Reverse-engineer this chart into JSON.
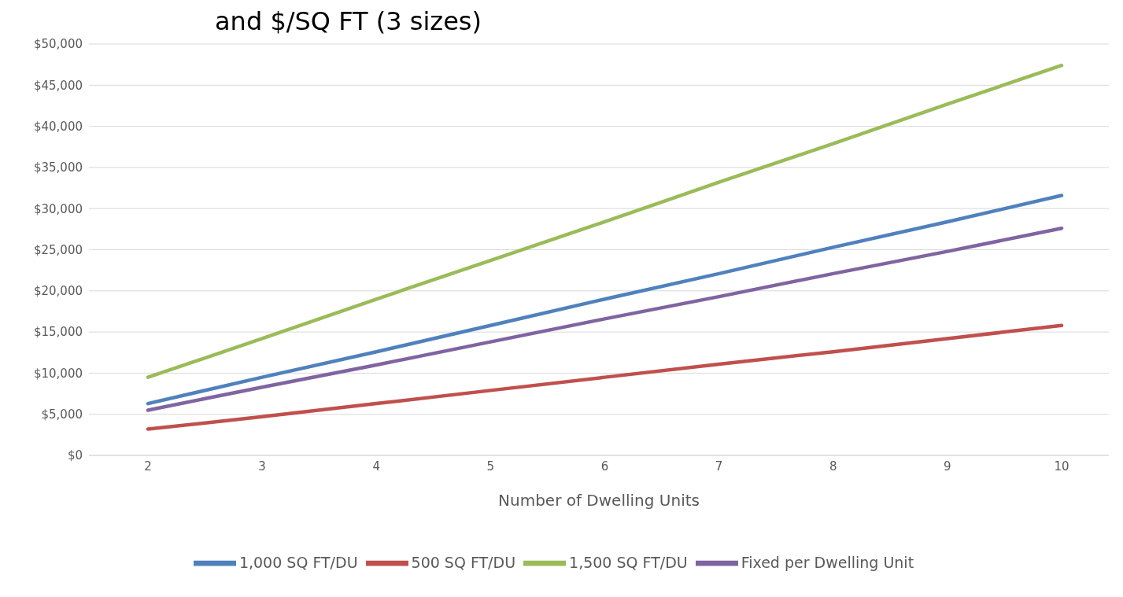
{
  "chart_data": {
    "type": "line",
    "title": "and $/SQ FT (3 sizes)",
    "xlabel": "Number of Dwelling Units",
    "categories": [
      "2",
      "3",
      "4",
      "5",
      "6",
      "7",
      "8",
      "9",
      "10"
    ],
    "series": [
      {
        "name": "1,000 SQ FT/DU",
        "color": "#4f81bd",
        "values": [
          6300,
          9500,
          12600,
          15800,
          19000,
          22100,
          25300,
          28400,
          31600
        ]
      },
      {
        "name": "500 SQ FT/DU",
        "color": "#c0504d",
        "values": [
          3200,
          4700,
          6300,
          7900,
          9500,
          11100,
          12600,
          14200,
          15800
        ]
      },
      {
        "name": "1,500 SQ FT/DU",
        "color": "#9bbb59",
        "values": [
          9500,
          14200,
          19000,
          23700,
          28400,
          33200,
          37900,
          42700,
          47400
        ]
      },
      {
        "name": "Fixed per Dwelling Unit",
        "color": "#8064a2",
        "values": [
          5500,
          8300,
          11000,
          13800,
          16600,
          19300,
          22100,
          24800,
          27600
        ]
      }
    ],
    "ylim": [
      0,
      50000
    ],
    "yticks": [
      {
        "value": 0,
        "label": "$0"
      },
      {
        "value": 5000,
        "label": "$5,000"
      },
      {
        "value": 10000,
        "label": "$10,000"
      },
      {
        "value": 15000,
        "label": "$15,000"
      },
      {
        "value": 20000,
        "label": "$20,000"
      },
      {
        "value": 25000,
        "label": "$25,000"
      },
      {
        "value": 30000,
        "label": "$30,000"
      },
      {
        "value": 35000,
        "label": "$35,000"
      },
      {
        "value": 40000,
        "label": "$40,000"
      },
      {
        "value": 45000,
        "label": "$45,000"
      },
      {
        "value": 50000,
        "label": "$50,000"
      }
    ],
    "grid": "y",
    "legend": "bottom",
    "marker": "none",
    "line_style": "solid"
  }
}
